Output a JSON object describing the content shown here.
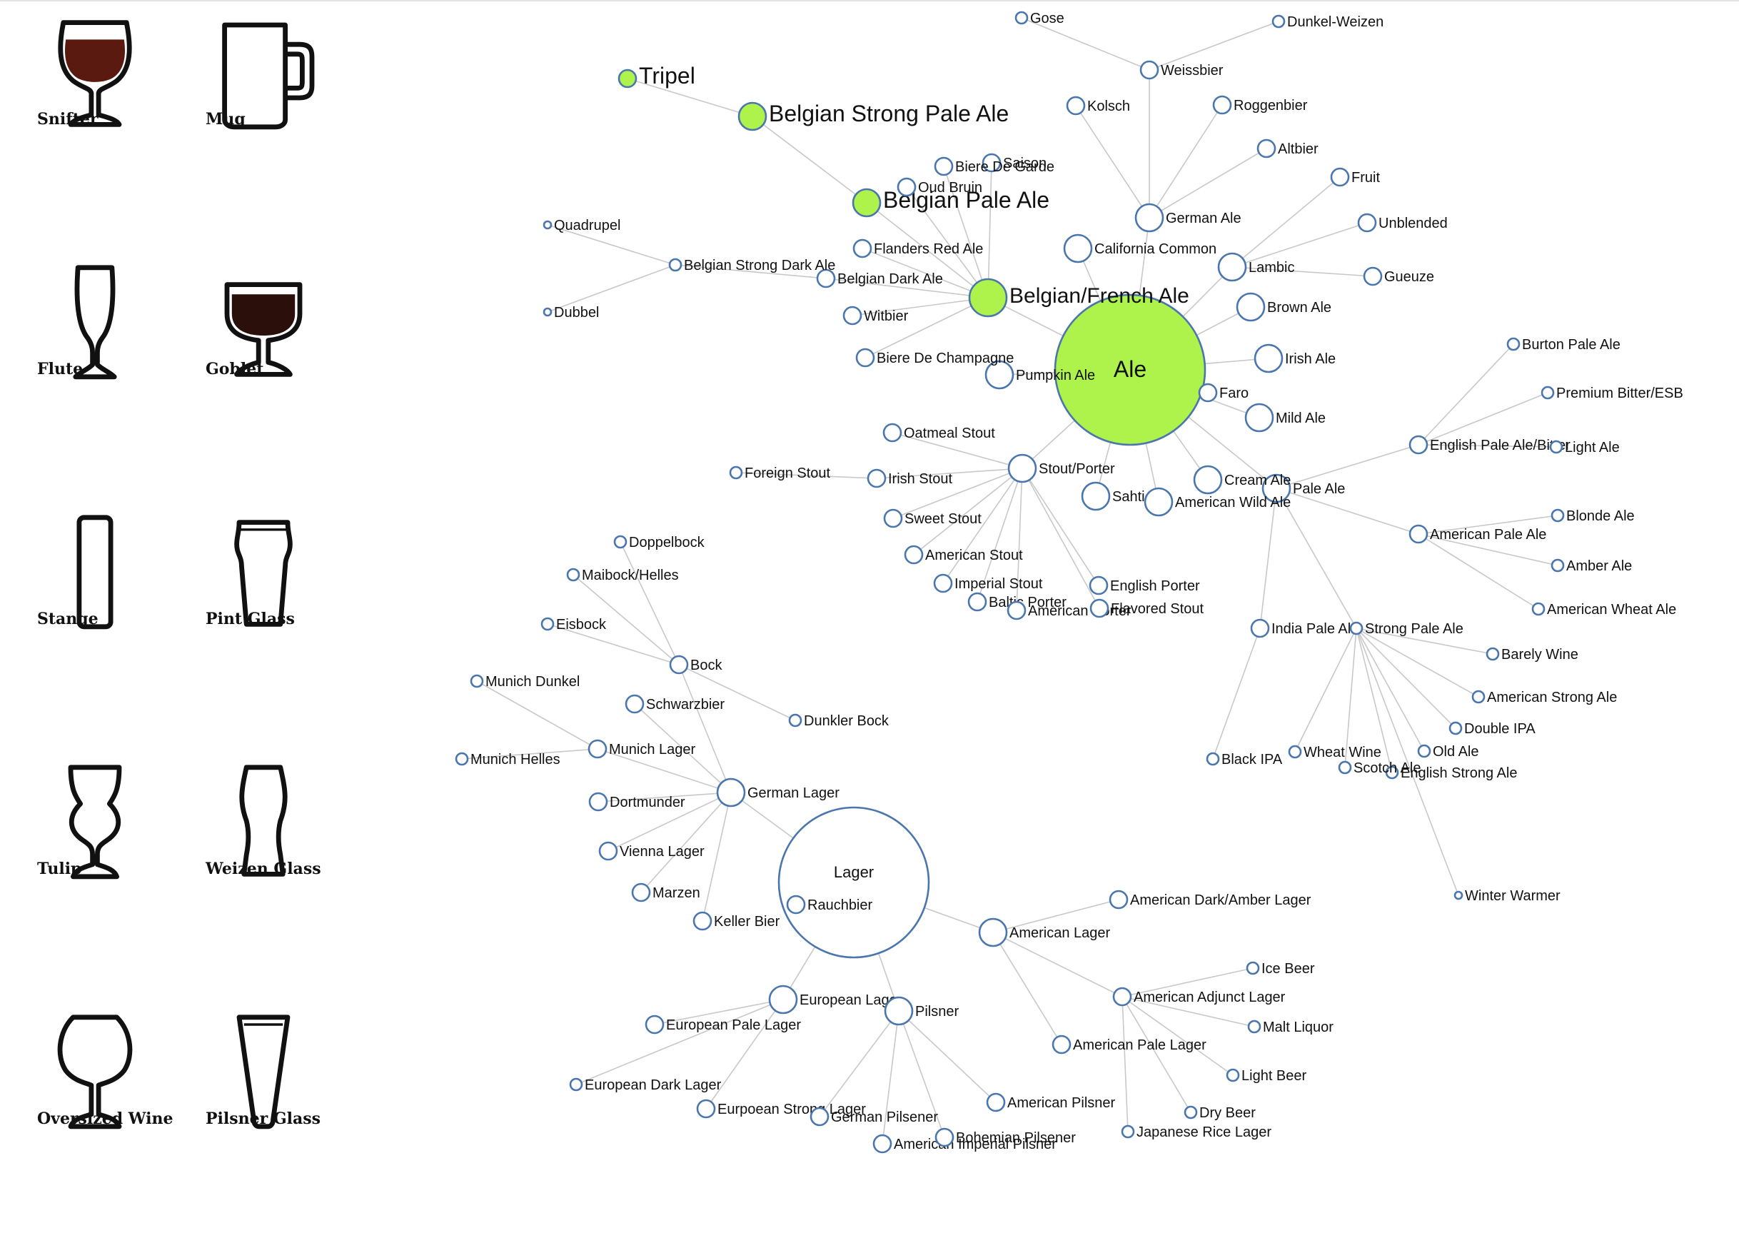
{
  "glasses": [
    {
      "name": "Snifter",
      "icon": "snifter-glass-icon",
      "fill": "#5a1a10"
    },
    {
      "name": "Mug",
      "icon": "mug-icon",
      "fill": "none"
    },
    {
      "name": "Flute",
      "icon": "flute-glass-icon",
      "fill": "none"
    },
    {
      "name": "Goblet",
      "icon": "goblet-glass-icon",
      "fill": "#2a0f0a"
    },
    {
      "name": "Stange",
      "icon": "stange-glass-icon",
      "fill": "none"
    },
    {
      "name": "Pint Glass",
      "icon": "pint-glass-icon",
      "fill": "none"
    },
    {
      "name": "Tulip",
      "icon": "tulip-glass-icon",
      "fill": "none"
    },
    {
      "name": "Weizen Glass",
      "icon": "weizen-glass-icon",
      "fill": "none"
    },
    {
      "name": "Oversized Wine",
      "icon": "oversized-wine-glass-icon",
      "fill": "none"
    },
    {
      "name": "Pilsner Glass",
      "icon": "pilsner-glass-icon",
      "fill": "none"
    }
  ],
  "colors": {
    "node_stroke": "#4a76ad",
    "highlight_fill": "#aef24c",
    "link": "#c8c8c8"
  },
  "graph": {
    "nodes": [
      {
        "id": "Ale",
        "parent": null,
        "size": "root",
        "hl": true
      },
      {
        "id": "Lager",
        "parent": null,
        "size": "root"
      },
      {
        "id": "Belgian/French Ale",
        "parent": "Ale",
        "size": "group",
        "hl": true
      },
      {
        "id": "Stout/Porter",
        "parent": "Ale",
        "size": "group"
      },
      {
        "id": "Pale Ale",
        "parent": "Ale",
        "size": "group"
      },
      {
        "id": "German Ale",
        "parent": "Ale",
        "size": "group"
      },
      {
        "id": "Lambic",
        "parent": "Ale",
        "size": "group"
      },
      {
        "id": "California Common",
        "parent": "Ale",
        "size": "group"
      },
      {
        "id": "Brown Ale",
        "parent": "Ale",
        "size": "group"
      },
      {
        "id": "Irish Ale",
        "parent": "Ale",
        "size": "group"
      },
      {
        "id": "Mild Ale",
        "parent": "Ale",
        "size": "group"
      },
      {
        "id": "Faro",
        "parent": "Ale",
        "size": "leaf"
      },
      {
        "id": "Cream Ale",
        "parent": "Ale",
        "size": "group"
      },
      {
        "id": "American Wild Ale",
        "parent": "Ale",
        "size": "group"
      },
      {
        "id": "Sahti",
        "parent": "Ale",
        "size": "group"
      },
      {
        "id": "Pumpkin Ale",
        "parent": "Ale",
        "size": "group"
      },
      {
        "id": "Belgian Pale Ale",
        "parent": "Belgian/French Ale",
        "size": "mid",
        "hl": true
      },
      {
        "id": "Belgian Strong Pale Ale",
        "parent": "Belgian Pale Ale",
        "size": "mid",
        "hl": true
      },
      {
        "id": "Tripel",
        "parent": "Belgian Strong Pale Ale",
        "size": "leaf",
        "hl": true
      },
      {
        "id": "Saison",
        "parent": "Belgian/French Ale",
        "size": "leaf"
      },
      {
        "id": "Biere De Garde",
        "parent": "Belgian/French Ale",
        "size": "leaf"
      },
      {
        "id": "Oud Bruin",
        "parent": "Belgian/French Ale",
        "size": "leaf"
      },
      {
        "id": "Flanders Red Ale",
        "parent": "Belgian/French Ale",
        "size": "leaf"
      },
      {
        "id": "Belgian Dark Ale",
        "parent": "Belgian/French Ale",
        "size": "leaf"
      },
      {
        "id": "Belgian Strong Dark Ale",
        "parent": "Belgian Dark Ale",
        "size": "small"
      },
      {
        "id": "Quadrupel",
        "parent": "Belgian Strong Dark Ale",
        "size": "tiny"
      },
      {
        "id": "Dubbel",
        "parent": "Belgian Strong Dark Ale",
        "size": "tiny"
      },
      {
        "id": "Witbier",
        "parent": "Belgian/French Ale",
        "size": "leaf"
      },
      {
        "id": "Biere De Champagne",
        "parent": "Belgian/French Ale",
        "size": "leaf"
      },
      {
        "id": "Weissbier",
        "parent": "German Ale",
        "size": "leaf"
      },
      {
        "id": "Gose",
        "parent": "Weissbier",
        "size": "small"
      },
      {
        "id": "Dunkel-Weizen",
        "parent": "Weissbier",
        "size": "small"
      },
      {
        "id": "Kolsch",
        "parent": "German Ale",
        "size": "leaf"
      },
      {
        "id": "Roggenbier",
        "parent": "German Ale",
        "size": "leaf"
      },
      {
        "id": "Altbier",
        "parent": "German Ale",
        "size": "leaf"
      },
      {
        "id": "Fruit",
        "parent": "Lambic",
        "size": "leaf"
      },
      {
        "id": "Unblended",
        "parent": "Lambic",
        "size": "leaf"
      },
      {
        "id": "Gueuze",
        "parent": "Lambic",
        "size": "leaf"
      },
      {
        "id": "Oatmeal Stout",
        "parent": "Stout/Porter",
        "size": "leaf"
      },
      {
        "id": "Irish Stout",
        "parent": "Stout/Porter",
        "size": "leaf"
      },
      {
        "id": "Foreign Stout",
        "parent": "Irish Stout",
        "size": "small"
      },
      {
        "id": "Sweet Stout",
        "parent": "Stout/Porter",
        "size": "leaf"
      },
      {
        "id": "American Stout",
        "parent": "Stout/Porter",
        "size": "leaf"
      },
      {
        "id": "Imperial Stout",
        "parent": "Stout/Porter",
        "size": "leaf"
      },
      {
        "id": "Baltic Porter",
        "parent": "Stout/Porter",
        "size": "leaf"
      },
      {
        "id": "American Porter",
        "parent": "Stout/Porter",
        "size": "leaf"
      },
      {
        "id": "Flavored Stout",
        "parent": "Stout/Porter",
        "size": "leaf"
      },
      {
        "id": "English Porter",
        "parent": "Stout/Porter",
        "size": "leaf"
      },
      {
        "id": "English Pale Ale/Bitter",
        "parent": "Pale Ale",
        "size": "leaf"
      },
      {
        "id": "Burton Pale Ale",
        "parent": "English Pale Ale/Bitter",
        "size": "small"
      },
      {
        "id": "Premium Bitter/ESB",
        "parent": "English Pale Ale/Bitter",
        "size": "small"
      },
      {
        "id": "Light Ale",
        "parent": "English Pale Ale/Bitter",
        "size": "small"
      },
      {
        "id": "American Pale Ale",
        "parent": "Pale Ale",
        "size": "leaf"
      },
      {
        "id": "Blonde Ale",
        "parent": "American Pale Ale",
        "size": "small"
      },
      {
        "id": "Amber Ale",
        "parent": "American Pale Ale",
        "size": "small"
      },
      {
        "id": "American Wheat Ale",
        "parent": "American Pale Ale",
        "size": "small"
      },
      {
        "id": "India Pale Ale",
        "parent": "Pale Ale",
        "size": "leaf"
      },
      {
        "id": "Black IPA",
        "parent": "India Pale Ale",
        "size": "small"
      },
      {
        "id": "Strong Pale Ale",
        "parent": "Pale Ale",
        "size": "small"
      },
      {
        "id": "Barely Wine",
        "parent": "Strong Pale Ale",
        "size": "small"
      },
      {
        "id": "American Strong Ale",
        "parent": "Strong Pale Ale",
        "size": "small"
      },
      {
        "id": "Double IPA",
        "parent": "Strong Pale Ale",
        "size": "small"
      },
      {
        "id": "Old Ale",
        "parent": "Strong Pale Ale",
        "size": "small"
      },
      {
        "id": "English Strong Ale",
        "parent": "Strong Pale Ale",
        "size": "small"
      },
      {
        "id": "Scotch Ale",
        "parent": "Strong Pale Ale",
        "size": "small"
      },
      {
        "id": "Wheat Wine",
        "parent": "Strong Pale Ale",
        "size": "small"
      },
      {
        "id": "Winter Warmer",
        "parent": "Strong Pale Ale",
        "size": "tiny"
      },
      {
        "id": "German Lager",
        "parent": "Lager",
        "size": "group"
      },
      {
        "id": "Bock",
        "parent": "German Lager",
        "size": "leaf"
      },
      {
        "id": "Doppelbock",
        "parent": "Bock",
        "size": "small"
      },
      {
        "id": "Maibock/Helles",
        "parent": "Bock",
        "size": "small"
      },
      {
        "id": "Eisbock",
        "parent": "Bock",
        "size": "small"
      },
      {
        "id": "Dunkler Bock",
        "parent": "Bock",
        "size": "small"
      },
      {
        "id": "Schwarzbier",
        "parent": "German Lager",
        "size": "leaf"
      },
      {
        "id": "Munich Lager",
        "parent": "German Lager",
        "size": "leaf"
      },
      {
        "id": "Munich Dunkel",
        "parent": "Munich Lager",
        "size": "small"
      },
      {
        "id": "Munich Helles",
        "parent": "Munich Lager",
        "size": "small"
      },
      {
        "id": "Dortmunder",
        "parent": "German Lager",
        "size": "leaf"
      },
      {
        "id": "Vienna Lager",
        "parent": "German Lager",
        "size": "leaf"
      },
      {
        "id": "Marzen",
        "parent": "German Lager",
        "size": "leaf"
      },
      {
        "id": "Keller Bier",
        "parent": "German Lager",
        "size": "leaf"
      },
      {
        "id": "Rauchbier",
        "parent": "Lager",
        "size": "leaf"
      },
      {
        "id": "American Lager",
        "parent": "Lager",
        "size": "group"
      },
      {
        "id": "American Dark/Amber Lager",
        "parent": "American Lager",
        "size": "leaf"
      },
      {
        "id": "American Adjunct Lager",
        "parent": "American Lager",
        "size": "leaf"
      },
      {
        "id": "Ice Beer",
        "parent": "American Adjunct Lager",
        "size": "small"
      },
      {
        "id": "Malt Liquor",
        "parent": "American Adjunct Lager",
        "size": "small"
      },
      {
        "id": "Light Beer",
        "parent": "American Adjunct Lager",
        "size": "small"
      },
      {
        "id": "Dry Beer",
        "parent": "American Adjunct Lager",
        "size": "small"
      },
      {
        "id": "Japanese Rice Lager",
        "parent": "American Adjunct Lager",
        "size": "small"
      },
      {
        "id": "American Pale Lager",
        "parent": "American Lager",
        "size": "leaf"
      },
      {
        "id": "European Lager",
        "parent": "Lager",
        "size": "group"
      },
      {
        "id": "European Pale Lager",
        "parent": "European Lager",
        "size": "leaf"
      },
      {
        "id": "European Dark Lager",
        "parent": "European Lager",
        "size": "small"
      },
      {
        "id": "Eurpoean Strong Lager",
        "parent": "European Lager",
        "size": "leaf"
      },
      {
        "id": "Pilsner",
        "parent": "Lager",
        "size": "group"
      },
      {
        "id": "German Pilsener",
        "parent": "Pilsner",
        "size": "leaf"
      },
      {
        "id": "American Imperial Pilsner",
        "parent": "Pilsner",
        "size": "leaf"
      },
      {
        "id": "Bohemian Pilsener",
        "parent": "Pilsner",
        "size": "leaf"
      },
      {
        "id": "American Pilsner",
        "parent": "Pilsner",
        "size": "leaf"
      }
    ]
  }
}
